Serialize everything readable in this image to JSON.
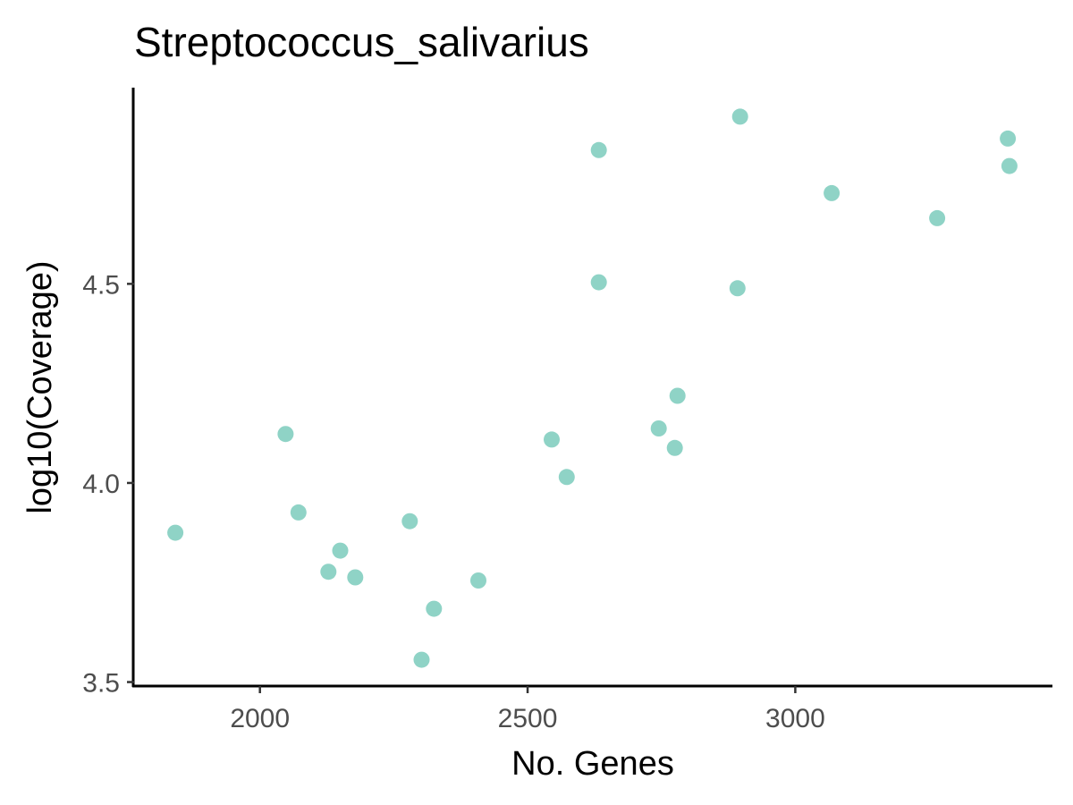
{
  "chart_data": {
    "type": "scatter",
    "title": "Streptococcus_salivarius",
    "xlabel": "No. Genes",
    "ylabel": "log10(Coverage)",
    "xlim": [
      1765,
      3477
    ],
    "ylim": [
      3.49,
      4.995
    ],
    "x_ticks": [
      2000,
      2500,
      3000
    ],
    "x_tick_labels": [
      "2000",
      "2500",
      "3000"
    ],
    "y_ticks": [
      3.5,
      4.0,
      4.5
    ],
    "y_tick_labels": [
      "3.5",
      "4.0",
      "4.5"
    ],
    "grid": false,
    "legend": "none",
    "point_color": "#8fd3c6",
    "points": [
      {
        "x": 1842,
        "y": 3.875
      },
      {
        "x": 2048,
        "y": 4.123
      },
      {
        "x": 2072,
        "y": 3.926
      },
      {
        "x": 2128,
        "y": 3.777
      },
      {
        "x": 2150,
        "y": 3.83
      },
      {
        "x": 2178,
        "y": 3.763
      },
      {
        "x": 2280,
        "y": 3.904
      },
      {
        "x": 2302,
        "y": 3.556
      },
      {
        "x": 2325,
        "y": 3.684
      },
      {
        "x": 2408,
        "y": 3.755
      },
      {
        "x": 2545,
        "y": 4.109
      },
      {
        "x": 2573,
        "y": 4.015
      },
      {
        "x": 2633,
        "y": 4.836
      },
      {
        "x": 2633,
        "y": 4.504
      },
      {
        "x": 2745,
        "y": 4.137
      },
      {
        "x": 2775,
        "y": 4.088
      },
      {
        "x": 2780,
        "y": 4.219
      },
      {
        "x": 2892,
        "y": 4.489
      },
      {
        "x": 2897,
        "y": 4.92
      },
      {
        "x": 3068,
        "y": 4.728
      },
      {
        "x": 3265,
        "y": 4.665
      },
      {
        "x": 3397,
        "y": 4.865
      },
      {
        "x": 3400,
        "y": 4.796
      }
    ]
  }
}
